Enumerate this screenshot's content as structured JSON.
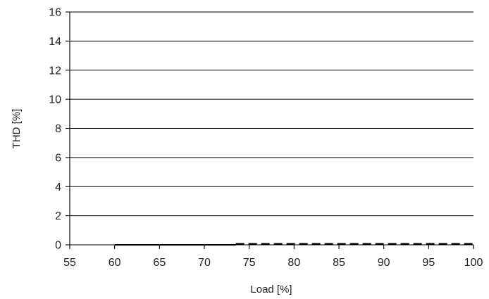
{
  "chart_data": {
    "type": "line",
    "title": "",
    "xlabel": "Load [%]",
    "ylabel": "THD [%]",
    "xlim": [
      55,
      100
    ],
    "ylim": [
      0,
      16
    ],
    "x_ticks": [
      55,
      60,
      65,
      70,
      75,
      80,
      85,
      90,
      95,
      100
    ],
    "y_ticks": [
      0,
      2,
      4,
      6,
      8,
      10,
      12,
      14,
      16
    ],
    "grid": "horizontal",
    "legend": "none",
    "series": [
      {
        "style": "solid",
        "color": "#000000",
        "x": [
          60,
          73.5
        ],
        "y": [
          0,
          0
        ]
      },
      {
        "style": "dashed",
        "color": "#000000",
        "x": [
          73.5,
          100
        ],
        "y": [
          0.05,
          0.05
        ]
      }
    ]
  }
}
